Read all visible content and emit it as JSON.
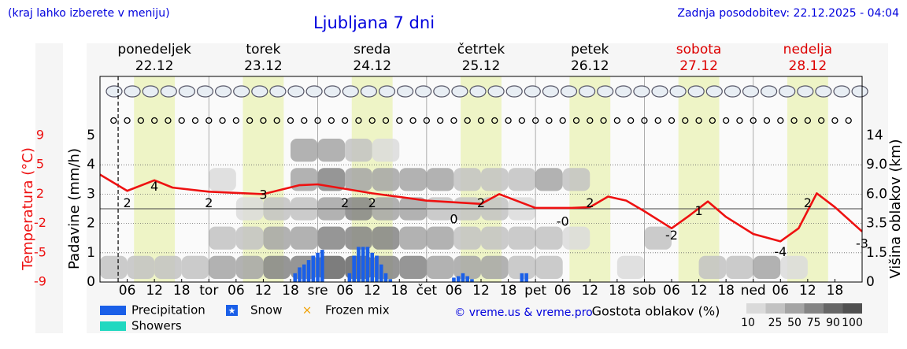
{
  "header": {
    "note": "(kraj lahko izberete v meniju)",
    "updated": "Zadnja posodobitev: 22.12.2025 - 04:04"
  },
  "chart_data": {
    "type": "meteogram",
    "title": "Ljubljana 7 dni",
    "days": [
      {
        "name": "ponedeljek",
        "date": "22.12",
        "color": "#000000"
      },
      {
        "name": "torek",
        "date": "23.12",
        "color": "#000000"
      },
      {
        "name": "sreda",
        "date": "24.12",
        "color": "#000000"
      },
      {
        "name": "četrtek",
        "date": "25.12",
        "color": "#000000"
      },
      {
        "name": "petek",
        "date": "26.12",
        "color": "#000000"
      },
      {
        "name": "sobota",
        "date": "27.12",
        "color": "#dd0000"
      },
      {
        "name": "nedelja",
        "date": "28.12",
        "color": "#dd0000"
      }
    ],
    "xlim": [
      0,
      168
    ],
    "xticks": [
      {
        "value": 6,
        "label": "06"
      },
      {
        "value": 12,
        "label": "12"
      },
      {
        "value": 18,
        "label": "18"
      },
      {
        "value": 24,
        "label": "tor"
      },
      {
        "value": 30,
        "label": "06"
      },
      {
        "value": 36,
        "label": "12"
      },
      {
        "value": 42,
        "label": "18"
      },
      {
        "value": 48,
        "label": "sre"
      },
      {
        "value": 54,
        "label": "06"
      },
      {
        "value": 60,
        "label": "12"
      },
      {
        "value": 66,
        "label": "18"
      },
      {
        "value": 72,
        "label": "čet"
      },
      {
        "value": 78,
        "label": "06"
      },
      {
        "value": 84,
        "label": "12"
      },
      {
        "value": 90,
        "label": "18"
      },
      {
        "value": 96,
        "label": "pet"
      },
      {
        "value": 102,
        "label": "06"
      },
      {
        "value": 108,
        "label": "12"
      },
      {
        "value": 114,
        "label": "18"
      },
      {
        "value": 120,
        "label": "sob"
      },
      {
        "value": 126,
        "label": "06"
      },
      {
        "value": 132,
        "label": "12"
      },
      {
        "value": 138,
        "label": "18"
      },
      {
        "value": 144,
        "label": "ned"
      },
      {
        "value": 150,
        "label": "06"
      },
      {
        "value": 156,
        "label": "12"
      },
      {
        "value": 162,
        "label": "18"
      }
    ],
    "now": 4,
    "daylight": [
      [
        7.5,
        16.5
      ],
      [
        31.5,
        40.5
      ],
      [
        55.5,
        64.5
      ],
      [
        79.5,
        88.5
      ],
      [
        103.5,
        112.5
      ],
      [
        127.5,
        136.5
      ],
      [
        151.5,
        160.5
      ]
    ],
    "ylabel": "Padavine (mm/h)",
    "ylim": [
      0,
      5
    ],
    "yticks": [
      0,
      1,
      2,
      3,
      4,
      5
    ],
    "temp_label": "Temperatura (°C)",
    "temp_lim": [
      -9,
      9
    ],
    "temp_ticks": [
      {
        "value": -9,
        "label": "-9"
      },
      {
        "value": -5.4,
        "label": "-5"
      },
      {
        "value": -1.8,
        "label": "-2"
      },
      {
        "value": 1.8,
        "label": "2"
      },
      {
        "value": 5.4,
        "label": "5"
      },
      9
    ],
    "y2label": "Višina oblakov (km)",
    "y2ticks": [
      0,
      1.5,
      3.5,
      {
        "value": 6,
        "label": "6.0"
      },
      {
        "value": 9,
        "label": "9.0"
      },
      14
    ],
    "temperature": {
      "color": "#ee1111",
      "x": [
        0,
        6,
        12,
        16,
        24,
        36,
        44,
        48,
        60,
        72,
        84,
        88,
        96,
        104,
        108,
        112,
        116,
        120,
        126,
        130,
        134,
        138,
        144,
        150,
        154,
        158,
        162,
        168
      ],
      "values": [
        4.2,
        2.2,
        3.5,
        2.6,
        2.1,
        1.8,
        2.9,
        3.0,
        1.9,
        1.0,
        0.6,
        1.8,
        0.1,
        0.1,
        0.2,
        1.5,
        1.0,
        -0.3,
        -2.4,
        -0.8,
        0.9,
        -1.0,
        -3.1,
        -4.0,
        -2.4,
        1.9,
        0.2,
        -2.8
      ]
    },
    "temperature_labels": {
      "x": [
        6,
        12,
        24,
        36,
        54,
        60,
        78,
        84,
        102,
        108,
        126,
        132,
        150,
        156,
        168
      ],
      "values": [
        2,
        4,
        2,
        3,
        2,
        2,
        0,
        2,
        -0.3,
        2,
        -2,
        1,
        -4,
        2,
        -3
      ],
      "value_labels": [
        "2",
        "4",
        "2",
        "3",
        "2",
        "2",
        "0",
        "2",
        "-0",
        "2",
        "-2",
        "1",
        "-4",
        "2",
        "-3"
      ]
    },
    "precipitation": {
      "color": "#1a5fe8",
      "x": [
        43,
        44,
        45,
        46,
        47,
        48,
        49,
        55,
        56,
        57,
        58,
        59,
        60,
        61,
        62,
        63,
        64,
        78,
        79,
        80,
        81,
        82,
        93,
        94
      ],
      "values": [
        0.3,
        0.5,
        0.6,
        0.75,
        0.9,
        1.0,
        1.1,
        0.3,
        0.9,
        1.2,
        1.2,
        1.2,
        1.0,
        0.9,
        0.6,
        0.3,
        0.1,
        0.15,
        0.2,
        0.3,
        0.2,
        0.1,
        0.3,
        0.3
      ]
    },
    "legend": [
      {
        "name": "Precipitation",
        "color": "#1a5fe8"
      },
      {
        "name": "Snow",
        "color": "#1a5fe8"
      },
      {
        "name": "Frozen mix",
        "color": "#f0a000"
      },
      {
        "name": "Showers",
        "color": "#20d8c0"
      }
    ],
    "credit": "© vreme.us & vreme.pro",
    "cloud": {
      "title": "Gostota oblakov (%)",
      "x": [
        0,
        6,
        12,
        18,
        24,
        30,
        36,
        42,
        48,
        54,
        60,
        66,
        72,
        78,
        84,
        90,
        96,
        102,
        108,
        114,
        120,
        126,
        132,
        138,
        144,
        150,
        156,
        162
      ],
      "values": [
        [
          30,
          0,
          0,
          0,
          0
        ],
        [
          25,
          0,
          0,
          0,
          0
        ],
        [
          25,
          0,
          0,
          0,
          0
        ],
        [
          30,
          0,
          0,
          0,
          0
        ],
        [
          50,
          25,
          0,
          10,
          0
        ],
        [
          70,
          40,
          10,
          0,
          0
        ],
        [
          80,
          60,
          25,
          0,
          0
        ],
        [
          85,
          70,
          40,
          60,
          50
        ],
        [
          90,
          80,
          70,
          75,
          60
        ],
        [
          90,
          85,
          75,
          60,
          25
        ],
        [
          80,
          75,
          50,
          50,
          10
        ],
        [
          75,
          60,
          50,
          50,
          0
        ],
        [
          70,
          50,
          40,
          50,
          0
        ],
        [
          60,
          40,
          40,
          40,
          0
        ],
        [
          50,
          40,
          25,
          25,
          0
        ],
        [
          40,
          25,
          10,
          25,
          0
        ],
        [
          25,
          25,
          0,
          50,
          0
        ],
        [
          0,
          10,
          0,
          25,
          0
        ],
        [
          0,
          0,
          0,
          0,
          0
        ],
        [
          10,
          0,
          0,
          0,
          0
        ],
        [
          0,
          25,
          0,
          0,
          0
        ],
        [
          0,
          0,
          0,
          0,
          0
        ],
        [
          25,
          0,
          0,
          0,
          0
        ],
        [
          25,
          0,
          0,
          0,
          0
        ],
        [
          50,
          0,
          0,
          0,
          0
        ],
        [
          10,
          0,
          0,
          0,
          0
        ],
        [
          0,
          0,
          0,
          0,
          0
        ],
        [
          0,
          0,
          0,
          0,
          0
        ]
      ],
      "scale": [
        10,
        25,
        50,
        75,
        90,
        100
      ],
      "scale_colors": [
        "#dadada",
        "#c2c2c2",
        "#a4a4a4",
        "#848484",
        "#666666",
        "#505050"
      ]
    }
  }
}
